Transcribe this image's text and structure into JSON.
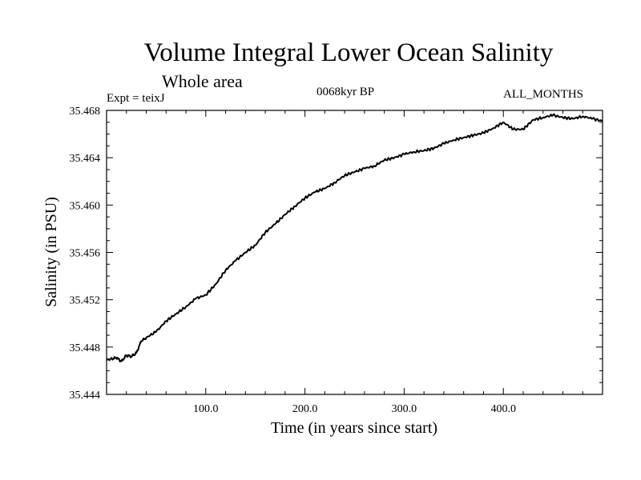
{
  "chart_data": {
    "type": "line",
    "title": "Volume Integral Lower Ocean Salinity",
    "subtitle": "Whole area",
    "left_label": "Expt = teixJ",
    "center_label": "0068kyr BP",
    "right_label": "ALL_MONTHS",
    "xlabel": "Time (in years since start)",
    "ylabel": "Salinity (in PSU)",
    "xlim": [
      0,
      500
    ],
    "ylim": [
      35.444,
      35.468
    ],
    "x_ticks": [
      100,
      200,
      300,
      400
    ],
    "x_tick_labels": [
      "100.0",
      "200.0",
      "300.0",
      "400.0"
    ],
    "y_ticks": [
      35.444,
      35.448,
      35.452,
      35.456,
      35.46,
      35.464,
      35.468
    ],
    "y_tick_labels": [
      "35.444",
      "35.448",
      "35.452",
      "35.456",
      "35.460",
      "35.464",
      "35.468"
    ],
    "series": [
      {
        "name": "salinity",
        "x": [
          0,
          10,
          15,
          20,
          25,
          30,
          35,
          40,
          50,
          60,
          70,
          80,
          90,
          100,
          110,
          120,
          130,
          140,
          150,
          160,
          170,
          180,
          190,
          200,
          210,
          220,
          230,
          240,
          250,
          260,
          270,
          280,
          290,
          300,
          310,
          320,
          330,
          340,
          350,
          360,
          370,
          380,
          390,
          400,
          410,
          420,
          430,
          440,
          450,
          460,
          470,
          480,
          490,
          500
        ],
        "values": [
          35.4469,
          35.4471,
          35.4468,
          35.4473,
          35.4472,
          35.4475,
          35.4485,
          35.4488,
          35.4493,
          35.4502,
          35.4508,
          35.4514,
          35.4521,
          35.4524,
          35.4533,
          35.4545,
          35.4553,
          35.456,
          35.4566,
          35.4577,
          35.4584,
          35.4592,
          35.4599,
          35.4606,
          35.4611,
          35.4614,
          35.4619,
          35.4625,
          35.4628,
          35.4631,
          35.4633,
          35.4638,
          35.464,
          35.4643,
          35.4645,
          35.4646,
          35.4648,
          35.4652,
          35.4655,
          35.4657,
          35.4659,
          35.4661,
          35.4665,
          35.467,
          35.4664,
          35.4664,
          35.4672,
          35.4674,
          35.4676,
          35.4674,
          35.4673,
          35.4675,
          35.4673,
          35.4671
        ]
      }
    ]
  }
}
